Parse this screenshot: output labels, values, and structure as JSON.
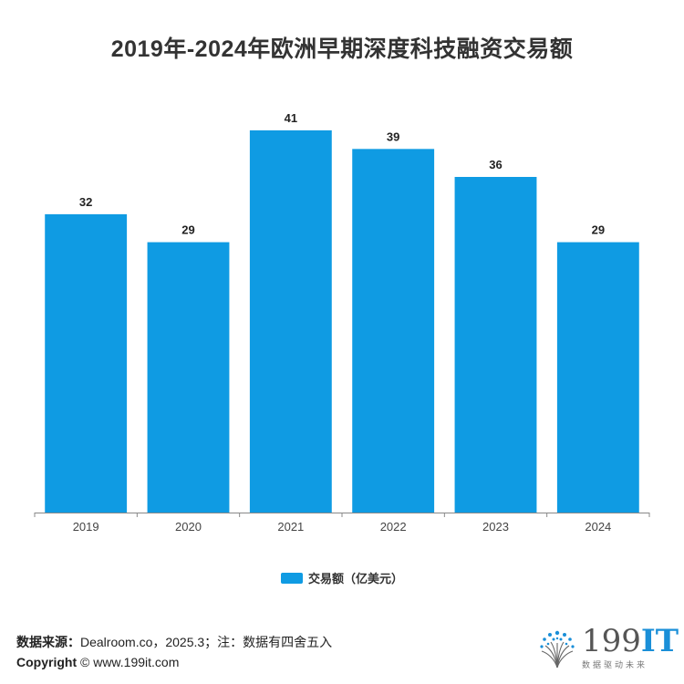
{
  "header": {
    "title": "2019年-2024年欧洲早期深度科技融资交易额"
  },
  "chart_data": {
    "type": "bar",
    "title": "2019年-2024年欧洲早期深度科技融资交易额",
    "categories": [
      "2019",
      "2020",
      "2021",
      "2022",
      "2023",
      "2024"
    ],
    "series": [
      {
        "name": "交易额（亿美元）",
        "values": [
          32,
          29,
          41,
          39,
          36,
          29
        ]
      }
    ],
    "ylim": [
      0,
      45
    ],
    "grid": false,
    "legend": "bottom",
    "bar_color": "#0f9be3"
  },
  "legend": {
    "label": "交易额（亿美元）"
  },
  "footer": {
    "source_label": "数据来源：",
    "source_text": "Dealroom.co，2025.3；注：数据有四舍五入",
    "copyright_label": "Copyright",
    "copyright_text": "© www.199it.com"
  },
  "logo": {
    "main": "199",
    "accent": "IT",
    "slogan": "数据驱动未来"
  },
  "colors": {
    "bar": "#0f9be3",
    "axis": "#888888",
    "logo_accent": "#1a8fd8"
  }
}
